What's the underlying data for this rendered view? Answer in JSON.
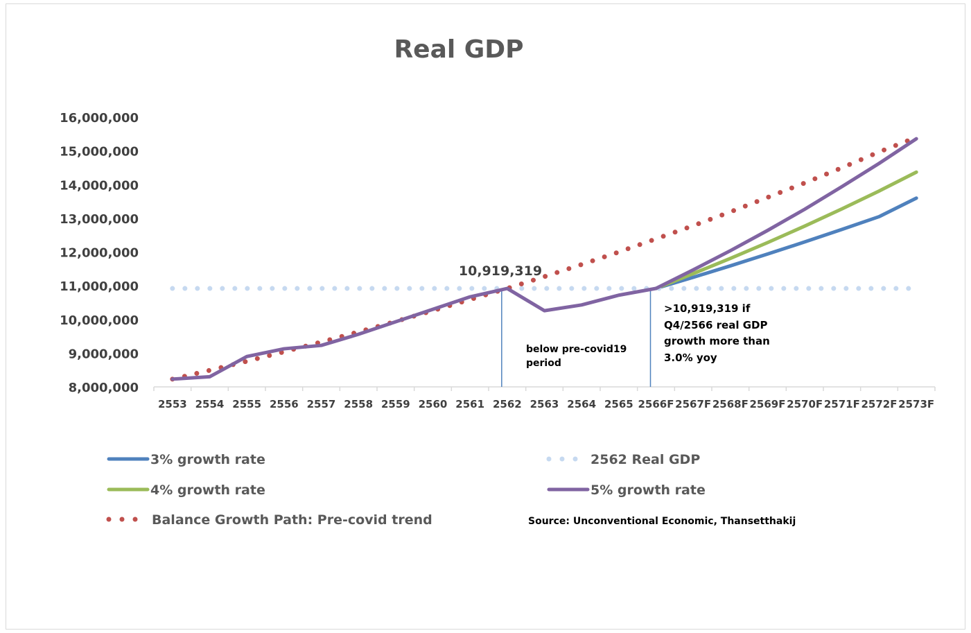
{
  "chart_data": {
    "type": "line",
    "title": "Real GDP",
    "categories": [
      "2553",
      "2554",
      "2555",
      "2556",
      "2557",
      "2558",
      "2559",
      "2560",
      "2561",
      "2562",
      "2563",
      "2564",
      "2565",
      "2566F",
      "2567F",
      "2568F",
      "2569F",
      "2570F",
      "2571F",
      "2572F",
      "2573F"
    ],
    "ylim": [
      8000000,
      16000000
    ],
    "yticks": [
      "8,000,000",
      "9,000,000",
      "10,000,000",
      "11,000,000",
      "12,000,000",
      "13,000,000",
      "14,000,000",
      "15,000,000",
      "16,000,000"
    ],
    "grid": false,
    "legend_placement": "bottom",
    "series": [
      {
        "name": "3% growth rate",
        "color": "#4f81bd",
        "style": "solid",
        "values": [
          null,
          null,
          null,
          null,
          null,
          null,
          null,
          null,
          null,
          null,
          null,
          null,
          null,
          10920000,
          11250000,
          11590000,
          11940000,
          12300000,
          12670000,
          13050000,
          13600000
        ]
      },
      {
        "name": "4% growth rate",
        "color": "#9bbb59",
        "style": "solid",
        "values": [
          null,
          null,
          null,
          null,
          null,
          null,
          null,
          null,
          null,
          null,
          null,
          null,
          null,
          10920000,
          11360000,
          11810000,
          12280000,
          12770000,
          13280000,
          13810000,
          14370000
        ]
      },
      {
        "name": "2562 Real GDP",
        "color": "#c6d9f0",
        "style": "dotted",
        "values": [
          10919319,
          10919319,
          10919319,
          10919319,
          10919319,
          10919319,
          10919319,
          10919319,
          10919319,
          10919319,
          10919319,
          10919319,
          10919319,
          10919319,
          10919319,
          10919319,
          10919319,
          10919319,
          10919319,
          10919319,
          10919319
        ]
      },
      {
        "name": "Balance Growth Path: Pre-covid trend",
        "color": "#c0504d",
        "style": "dotted",
        "values": [
          8230000,
          8490000,
          8760000,
          9040000,
          9330000,
          9630000,
          9940000,
          10260000,
          10590000,
          10920000,
          11270000,
          11630000,
          12000000,
          12390000,
          12780000,
          13190000,
          13620000,
          14050000,
          14500000,
          14970000,
          15400000
        ]
      },
      {
        "name": "5% growth rate",
        "color": "#8064a2",
        "style": "solid",
        "values": [
          8230000,
          8300000,
          8900000,
          9130000,
          9230000,
          9560000,
          9930000,
          10300000,
          10670000,
          10919319,
          10260000,
          10430000,
          10720000,
          10920000,
          11470000,
          12040000,
          12640000,
          13270000,
          13940000,
          14630000,
          15360000
        ]
      }
    ],
    "annotations": {
      "peak_label": "10,919,319",
      "below_line1": "below pre-covid19",
      "below_line2": "period",
      "cond_line1": ">10,919,319 if",
      "cond_line2": "Q4/2566 real GDP",
      "cond_line3": "growth more than",
      "cond_line4": "3.0% yoy",
      "vlines_at": [
        "2562",
        "2566F"
      ]
    },
    "source": "Source: Unconventional Economic,  Thansetthakij"
  }
}
